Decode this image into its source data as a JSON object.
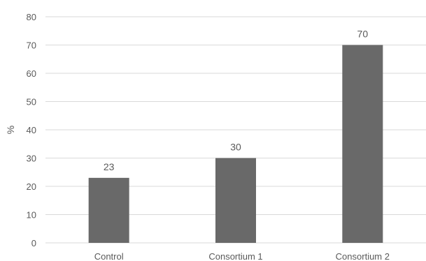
{
  "chart_data": {
    "type": "bar",
    "title": "",
    "xlabel": "",
    "ylabel": "%",
    "categories": [
      "Control",
      "Consortium 1",
      "Consortium 2"
    ],
    "values": [
      23,
      30,
      70
    ],
    "data_labels": [
      "23",
      "30",
      "70"
    ],
    "ylim": [
      0,
      80
    ],
    "yticks": [
      "0",
      "10",
      "20",
      "30",
      "40",
      "50",
      "60",
      "70",
      "80"
    ],
    "grid": true,
    "legend": "none",
    "bar_color": "#696969",
    "grid_color": "#d9d9d9"
  }
}
